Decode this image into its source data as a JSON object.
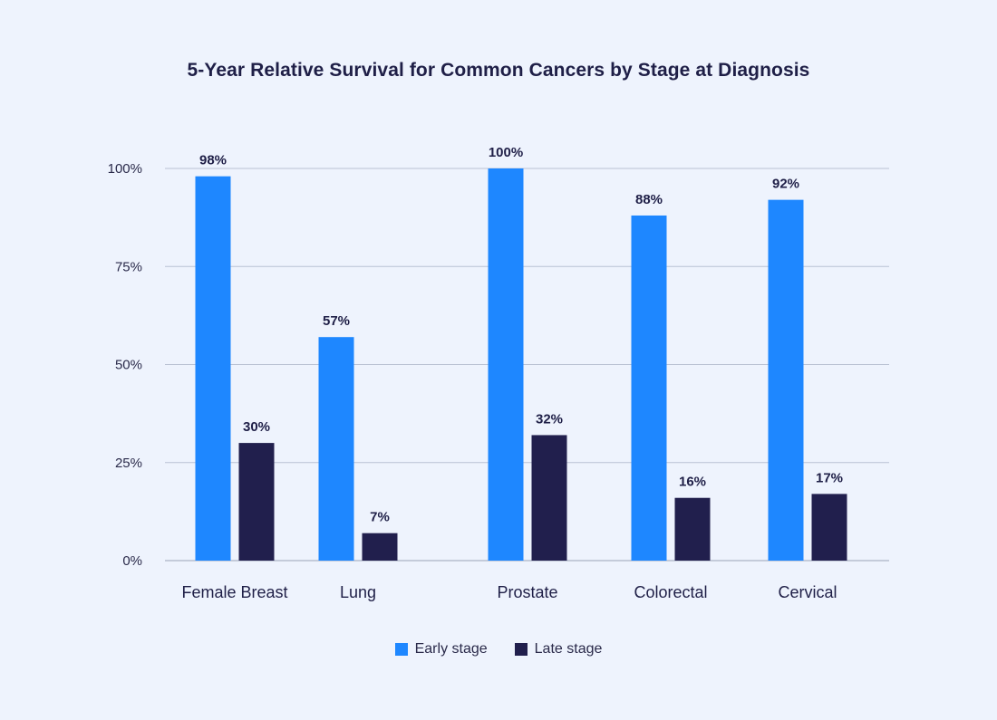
{
  "chart_data": {
    "type": "bar",
    "title": "5-Year Relative Survival for Common Cancers by Stage at Diagnosis",
    "categories": [
      "Female Breast",
      "Lung",
      "Prostate",
      "Colorectal",
      "Cervical"
    ],
    "series": [
      {
        "name": "Early stage",
        "color": "#1e87ff",
        "values": [
          98,
          57,
          100,
          88,
          92
        ],
        "labels": [
          "98%",
          "57%",
          "100%",
          "88%",
          "92%"
        ]
      },
      {
        "name": "Late stage",
        "color": "#211f4d",
        "values": [
          30,
          7,
          32,
          16,
          17
        ],
        "labels": [
          "30%",
          "7%",
          "32%",
          "16%",
          "17%"
        ]
      }
    ],
    "yticks": [
      0,
      25,
      50,
      75,
      100
    ],
    "ytick_labels": [
      "0%",
      "25%",
      "50%",
      "75%",
      "100%"
    ],
    "ylim": [
      0,
      100
    ],
    "grid": true,
    "legend_position": "bottom-center"
  }
}
